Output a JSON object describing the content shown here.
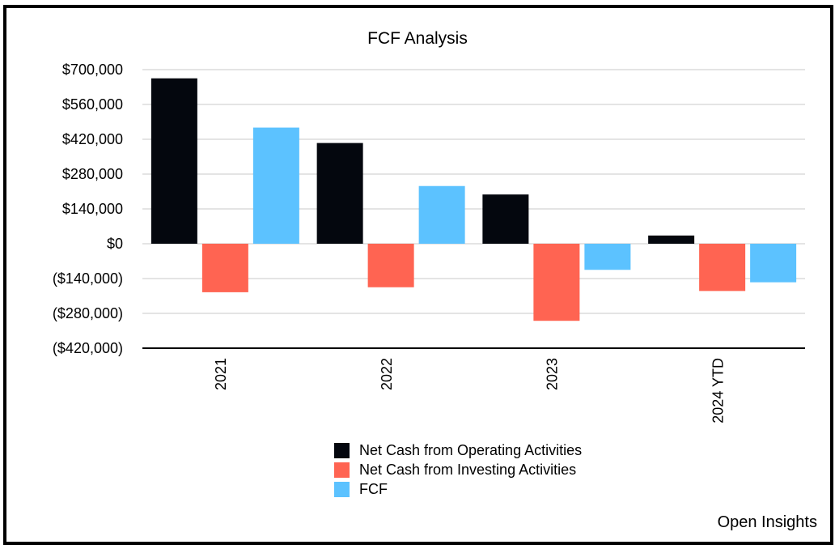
{
  "colors": {
    "operating": "#04070e",
    "investing": "#ff6452",
    "fcf": "#5cc2ff",
    "grid": "#c8c8c8",
    "axis": "#000000"
  },
  "credit": "Open Insights",
  "chart_data": {
    "type": "bar",
    "title": "FCF Analysis",
    "xlabel": "",
    "ylabel": "",
    "categories": [
      "2021",
      "2022",
      "2023",
      "2024 YTD"
    ],
    "series": [
      {
        "name": "Net Cash from Operating Activities",
        "color_key": "operating",
        "values": [
          665000,
          405000,
          198000,
          33000
        ]
      },
      {
        "name": "Net Cash from Investing Activities",
        "color_key": "investing",
        "values": [
          -195000,
          -175000,
          -310000,
          -190000
        ]
      },
      {
        "name": "FCF",
        "color_key": "fcf",
        "values": [
          467000,
          232000,
          -105000,
          -155000
        ]
      }
    ],
    "ylim": [
      -420000,
      700000
    ],
    "yticks": [
      700000,
      560000,
      420000,
      280000,
      140000,
      0,
      -140000,
      -280000,
      -420000
    ],
    "ytick_labels": [
      "$700,000",
      "$560,000",
      "$420,000",
      "$280,000",
      "$140,000",
      "$0",
      "($140,000)",
      "($280,000)",
      "($420,000)"
    ],
    "grid": true,
    "legend_position": "bottom-center"
  }
}
